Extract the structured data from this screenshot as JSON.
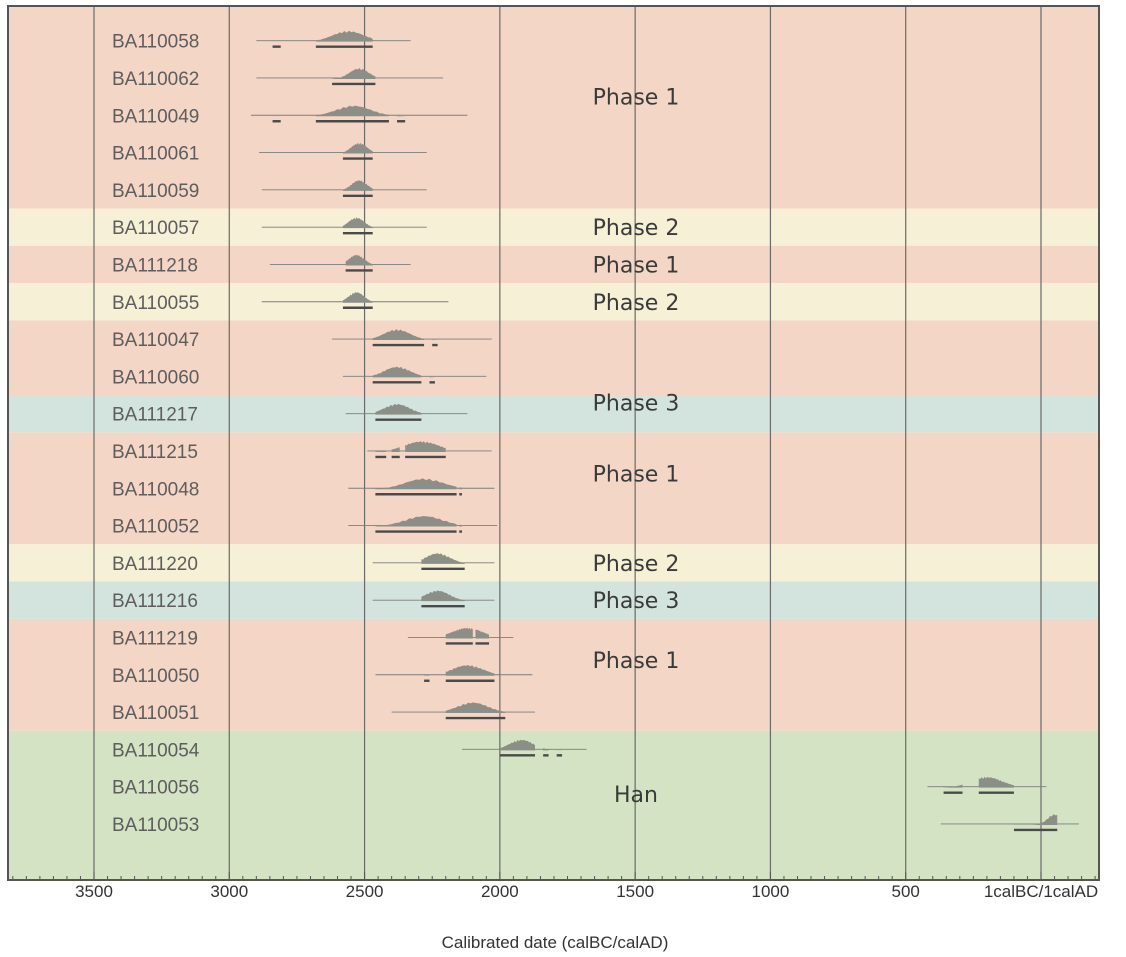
{
  "chart_data": {
    "type": "range-plot",
    "xlabel": "Calibrated date (calBC/calAD)",
    "x_ticks": [
      {
        "v": 3500,
        "label": "3500"
      },
      {
        "v": 3000,
        "label": "3000"
      },
      {
        "v": 2500,
        "label": "2500"
      },
      {
        "v": 2000,
        "label": "2000"
      },
      {
        "v": 1500,
        "label": "1500"
      },
      {
        "v": 1000,
        "label": "1000"
      },
      {
        "v": 500,
        "label": "500"
      },
      {
        "v": 0,
        "label": "1calBC/1calAD"
      }
    ],
    "x_direction": "BC decreasing left to right",
    "grid": true,
    "colors": {
      "Phase 1": "#f4d6c6",
      "Phase 2": "#f5f0d6",
      "Phase 3": "#d3e4de",
      "Han": "#d3e3c3",
      "distribution": "#8c8e88",
      "range_line": "#555555"
    },
    "phase_labels": [
      {
        "text": "Phase 1",
        "row": 1.5,
        "band": "Phase 1"
      },
      {
        "text": "Phase 2",
        "row": 5,
        "band": "Phase 2"
      },
      {
        "text": "Phase 1",
        "row": 6,
        "band": "Phase 1"
      },
      {
        "text": "Phase 2",
        "row": 7,
        "band": "Phase 2"
      },
      {
        "text": "Phase 3",
        "row": 9.7,
        "band": "Phase 3"
      },
      {
        "text": "Phase 1",
        "row": 11.6,
        "band": "Phase 1"
      },
      {
        "text": "Phase 2",
        "row": 14,
        "band": "Phase 2"
      },
      {
        "text": "Phase 3",
        "row": 15,
        "band": "Phase 3"
      },
      {
        "text": "Phase 1",
        "row": 16.6,
        "band": "Phase 1"
      },
      {
        "text": "Han",
        "row": 20.2,
        "band": "Han"
      }
    ],
    "samples": [
      {
        "id": "BA110058",
        "phase": "Phase 1",
        "line": [
          2900,
          2330
        ],
        "peak": 2560,
        "spread": 90,
        "ranges": [
          [
            2840,
            2810
          ],
          [
            2680,
            2470
          ]
        ]
      },
      {
        "id": "BA110062",
        "phase": "Phase 1",
        "line": [
          2900,
          2210
        ],
        "peak": 2520,
        "spread": 55,
        "ranges": [
          [
            2620,
            2460
          ]
        ]
      },
      {
        "id": "BA110049",
        "phase": "Phase 1",
        "line": [
          2920,
          2120
        ],
        "peak": 2540,
        "spread": 100,
        "ranges": [
          [
            2840,
            2810
          ],
          [
            2680,
            2410
          ],
          [
            2380,
            2350
          ]
        ]
      },
      {
        "id": "BA110061",
        "phase": "Phase 1",
        "line": [
          2890,
          2270
        ],
        "peak": 2520,
        "spread": 45,
        "ranges": [
          [
            2580,
            2470
          ]
        ]
      },
      {
        "id": "BA110059",
        "phase": "Phase 1",
        "line": [
          2880,
          2270
        ],
        "peak": 2520,
        "spread": 45,
        "ranges": [
          [
            2580,
            2470
          ]
        ]
      },
      {
        "id": "BA110057",
        "phase": "Phase 2",
        "line": [
          2880,
          2270
        ],
        "peak": 2530,
        "spread": 45,
        "ranges": [
          [
            2580,
            2470
          ]
        ]
      },
      {
        "id": "BA111218",
        "phase": "Phase 1",
        "line": [
          2850,
          2330
        ],
        "peak": 2530,
        "spread": 45,
        "ranges": [
          [
            2570,
            2470
          ]
        ]
      },
      {
        "id": "BA110055",
        "phase": "Phase 2",
        "line": [
          2880,
          2190
        ],
        "peak": 2530,
        "spread": 45,
        "ranges": [
          [
            2580,
            2470
          ]
        ]
      },
      {
        "id": "BA110047",
        "phase": "Phase 1",
        "line": [
          2620,
          2030
        ],
        "peak": 2380,
        "spread": 75,
        "ranges": [
          [
            2470,
            2280
          ],
          [
            2250,
            2230
          ]
        ]
      },
      {
        "id": "BA110060",
        "phase": "Phase 1",
        "line": [
          2580,
          2050
        ],
        "peak": 2380,
        "spread": 75,
        "ranges": [
          [
            2470,
            2290
          ],
          [
            2260,
            2240
          ]
        ]
      },
      {
        "id": "BA111217",
        "phase": "Phase 3",
        "line": [
          2570,
          2120
        ],
        "peak": 2380,
        "spread": 75,
        "ranges": [
          [
            2460,
            2290
          ]
        ]
      },
      {
        "id": "BA111215",
        "phase": "Phase 1",
        "line": [
          2490,
          2030
        ],
        "peak": 2290,
        "spread": 100,
        "ranges": [
          [
            2460,
            2420
          ],
          [
            2400,
            2370
          ],
          [
            2350,
            2200
          ]
        ]
      },
      {
        "id": "BA110048",
        "phase": "Phase 1",
        "line": [
          2560,
          2020
        ],
        "peak": 2280,
        "spread": 110,
        "ranges": [
          [
            2460,
            2160
          ],
          [
            2150,
            2140
          ]
        ]
      },
      {
        "id": "BA110052",
        "phase": "Phase 1",
        "line": [
          2560,
          2010
        ],
        "peak": 2280,
        "spread": 110,
        "ranges": [
          [
            2460,
            2160
          ],
          [
            2150,
            2140
          ]
        ]
      },
      {
        "id": "BA111220",
        "phase": "Phase 2",
        "line": [
          2470,
          2020
        ],
        "peak": 2230,
        "spread": 70,
        "ranges": [
          [
            2290,
            2130
          ]
        ]
      },
      {
        "id": "BA111216",
        "phase": "Phase 3",
        "line": [
          2470,
          2020
        ],
        "peak": 2230,
        "spread": 70,
        "ranges": [
          [
            2290,
            2130
          ]
        ]
      },
      {
        "id": "BA111219",
        "phase": "Phase 1",
        "line": [
          2340,
          1950
        ],
        "peak": 2120,
        "spread": 90,
        "ranges": [
          [
            2200,
            2100
          ],
          [
            2090,
            2040
          ]
        ]
      },
      {
        "id": "BA110050",
        "phase": "Phase 1",
        "line": [
          2460,
          1880
        ],
        "peak": 2120,
        "spread": 90,
        "ranges": [
          [
            2280,
            2260
          ],
          [
            2200,
            2020
          ]
        ]
      },
      {
        "id": "BA110051",
        "phase": "Phase 1",
        "line": [
          2400,
          1870
        ],
        "peak": 2100,
        "spread": 90,
        "ranges": [
          [
            2200,
            1980
          ]
        ]
      },
      {
        "id": "BA110054",
        "phase": "Han",
        "line": [
          2140,
          1680
        ],
        "peak": 1920,
        "spread": 70,
        "ranges": [
          [
            2000,
            1870
          ],
          [
            1840,
            1820
          ],
          [
            1790,
            1770
          ]
        ]
      },
      {
        "id": "BA110056",
        "phase": "Han",
        "line": [
          420,
          -20
        ],
        "peak": 200,
        "spread": 90,
        "ranges": [
          [
            360,
            290
          ],
          [
            230,
            100
          ]
        ]
      },
      {
        "id": "BA110053",
        "phase": "Han",
        "line": [
          370,
          -140
        ],
        "peak": -50,
        "spread": 40,
        "ranges": [
          [
            100,
            -60
          ]
        ]
      }
    ]
  }
}
